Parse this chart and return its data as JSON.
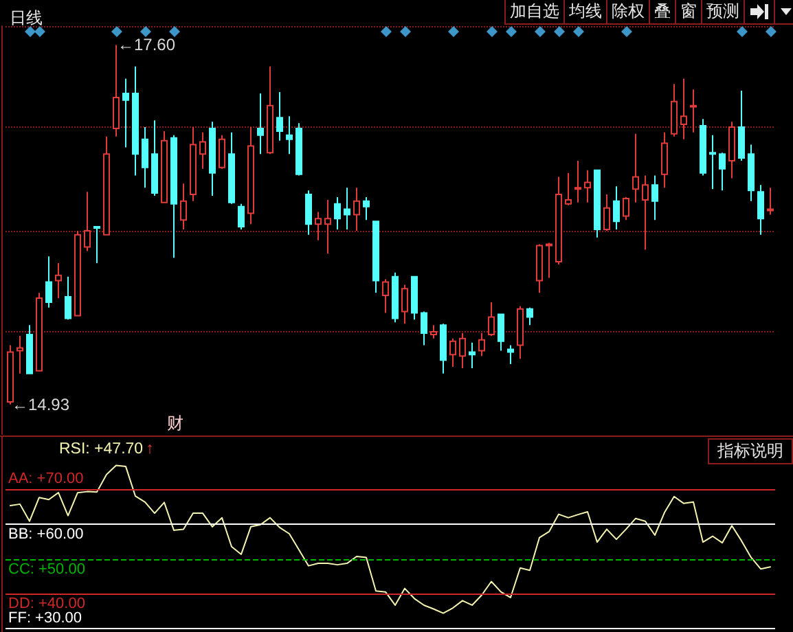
{
  "chart_data": [
    {
      "type": "candlestick",
      "title": "日线",
      "categories": [
        null,
        null,
        null,
        null,
        null,
        null,
        null,
        null,
        null,
        null,
        null,
        null,
        null,
        null,
        null,
        null,
        null,
        null,
        null,
        null,
        null,
        null,
        null,
        null,
        null,
        null,
        null,
        null,
        null,
        null,
        null,
        null,
        null,
        null,
        null,
        null,
        null,
        null,
        null,
        null,
        null,
        null,
        null,
        null,
        null,
        null,
        null,
        null,
        null,
        null,
        null,
        null,
        null,
        null,
        null,
        null,
        null,
        null,
        null,
        null,
        null,
        null,
        null,
        null,
        null,
        null,
        null,
        null,
        null,
        null,
        null,
        null,
        null,
        null,
        null,
        null,
        null,
        null,
        null,
        null
      ],
      "ohlc": [
        [
          14.95,
          15.37,
          14.93,
          15.32
        ],
        [
          15.33,
          15.44,
          15.16,
          15.35
        ],
        [
          15.45,
          15.52,
          15.16,
          15.16
        ],
        [
          15.18,
          15.76,
          15.18,
          15.72
        ],
        [
          15.84,
          16.03,
          15.65,
          15.69
        ],
        [
          15.85,
          15.98,
          15.72,
          15.89
        ],
        [
          15.73,
          15.88,
          15.56,
          15.57
        ],
        [
          15.59,
          16.22,
          15.59,
          16.19
        ],
        [
          16.1,
          16.51,
          16.07,
          16.22
        ],
        [
          16.25,
          16.25,
          15.98,
          16.24
        ],
        [
          16.19,
          16.92,
          16.19,
          16.79
        ],
        [
          16.98,
          17.6,
          16.92,
          17.21
        ],
        [
          17.24,
          17.35,
          16.84,
          17.19
        ],
        [
          17.24,
          17.44,
          16.63,
          16.79
        ],
        [
          16.9,
          16.99,
          16.54,
          16.69
        ],
        [
          16.79,
          17.04,
          16.48,
          16.5
        ],
        [
          16.43,
          16.96,
          16.43,
          16.89
        ],
        [
          16.91,
          16.93,
          16.02,
          16.42
        ],
        [
          16.3,
          16.57,
          16.23,
          16.44
        ],
        [
          16.49,
          16.99,
          16.44,
          16.86
        ],
        [
          16.79,
          16.95,
          16.68,
          16.88
        ],
        [
          16.98,
          17.03,
          16.48,
          16.65
        ],
        [
          16.69,
          16.93,
          16.68,
          16.9
        ],
        [
          16.79,
          16.95,
          16.42,
          16.43
        ],
        [
          16.4,
          16.42,
          16.23,
          16.25
        ],
        [
          16.35,
          16.99,
          16.27,
          16.85
        ],
        [
          16.98,
          17.24,
          16.79,
          16.93
        ],
        [
          16.8,
          17.44,
          16.79,
          17.15
        ],
        [
          17.06,
          17.25,
          16.89,
          16.96
        ],
        [
          16.93,
          17.07,
          16.79,
          16.9
        ],
        [
          16.98,
          17.02,
          16.63,
          16.64
        ],
        [
          16.49,
          16.52,
          16.19,
          16.27
        ],
        [
          16.27,
          16.36,
          16.15,
          16.31
        ],
        [
          16.27,
          16.45,
          16.05,
          16.31
        ],
        [
          16.42,
          16.47,
          16.23,
          16.31
        ],
        [
          16.38,
          16.54,
          16.23,
          16.34
        ],
        [
          16.34,
          16.54,
          16.22,
          16.44
        ],
        [
          16.44,
          16.47,
          16.3,
          16.4
        ],
        [
          16.29,
          16.29,
          15.76,
          15.85
        ],
        [
          15.74,
          15.86,
          15.61,
          15.84
        ],
        [
          15.88,
          15.91,
          15.54,
          15.57
        ],
        [
          15.62,
          15.82,
          15.53,
          15.79
        ],
        [
          15.88,
          15.88,
          15.56,
          15.61
        ],
        [
          15.61,
          15.62,
          15.37,
          15.46
        ],
        [
          15.45,
          15.52,
          15.42,
          15.47
        ],
        [
          15.52,
          15.53,
          15.16,
          15.26
        ],
        [
          15.3,
          15.42,
          15.21,
          15.4
        ],
        [
          15.29,
          15.46,
          15.2,
          15.42
        ],
        [
          15.32,
          15.39,
          15.2,
          15.3
        ],
        [
          15.33,
          15.46,
          15.29,
          15.41
        ],
        [
          15.45,
          15.69,
          15.44,
          15.58
        ],
        [
          15.6,
          15.6,
          15.33,
          15.4
        ],
        [
          15.34,
          15.37,
          15.23,
          15.32
        ],
        [
          15.37,
          15.66,
          15.27,
          15.64
        ],
        [
          15.64,
          15.65,
          15.52,
          15.58
        ],
        [
          15.85,
          16.12,
          15.76,
          16.11
        ],
        [
          16.11,
          16.13,
          15.87,
          16.12
        ],
        [
          15.99,
          16.62,
          15.97,
          16.49
        ],
        [
          16.42,
          16.65,
          16.41,
          16.45
        ],
        [
          16.53,
          16.74,
          16.43,
          16.54
        ],
        [
          16.54,
          16.67,
          16.43,
          16.58
        ],
        [
          16.67,
          16.67,
          16.17,
          16.23
        ],
        [
          16.23,
          16.49,
          16.22,
          16.39
        ],
        [
          16.44,
          16.55,
          16.23,
          16.29
        ],
        [
          16.33,
          16.47,
          16.3,
          16.46
        ],
        [
          16.53,
          16.94,
          16.43,
          16.62
        ],
        [
          16.45,
          16.63,
          16.08,
          16.56
        ],
        [
          16.56,
          16.63,
          16.3,
          16.44
        ],
        [
          16.64,
          16.95,
          16.54,
          16.87
        ],
        [
          16.94,
          17.31,
          16.92,
          17.18
        ],
        [
          17.01,
          17.35,
          16.9,
          17.07
        ],
        [
          17.14,
          17.27,
          16.95,
          17.15
        ],
        [
          17.0,
          17.05,
          16.63,
          16.65
        ],
        [
          16.8,
          16.93,
          16.53,
          16.79
        ],
        [
          16.79,
          16.8,
          16.52,
          16.68
        ],
        [
          16.74,
          17.03,
          16.61,
          16.99
        ],
        [
          16.99,
          17.26,
          16.74,
          16.76
        ],
        [
          16.79,
          16.86,
          16.44,
          16.52
        ],
        [
          16.51,
          16.56,
          16.19,
          16.31
        ],
        [
          16.37,
          16.54,
          16.34,
          16.38
        ]
      ],
      "colors": [
        "#e03c3c",
        "#e03c3c",
        "#54fcfc",
        "#e03c3c",
        "#54fcfc",
        "#e03c3c",
        "#54fcfc",
        "#e03c3c",
        "#e03c3c",
        "#54fcfc",
        "#e03c3c",
        "#e03c3c",
        "#54fcfc",
        "#54fcfc",
        "#54fcfc",
        "#54fcfc",
        "#e03c3c",
        "#54fcfc",
        "#e03c3c",
        "#e03c3c",
        "#e03c3c",
        "#54fcfc",
        "#e03c3c",
        "#54fcfc",
        "#54fcfc",
        "#e03c3c",
        "#54fcfc",
        "#e03c3c",
        "#54fcfc",
        "#54fcfc",
        "#54fcfc",
        "#54fcfc",
        "#e03c3c",
        "#e03c3c",
        "#54fcfc",
        "#54fcfc",
        "#e03c3c",
        "#54fcfc",
        "#54fcfc",
        "#e03c3c",
        "#54fcfc",
        "#e03c3c",
        "#54fcfc",
        "#54fcfc",
        "#e03c3c",
        "#54fcfc",
        "#e03c3c",
        "#e03c3c",
        "#54fcfc",
        "#e03c3c",
        "#e03c3c",
        "#54fcfc",
        "#54fcfc",
        "#e03c3c",
        "#54fcfc",
        "#e03c3c",
        "#e03c3c",
        "#e03c3c",
        "#e03c3c",
        "#e03c3c",
        "#e03c3c",
        "#54fcfc",
        "#e03c3c",
        "#54fcfc",
        "#e03c3c",
        "#e03c3c",
        "#e03c3c",
        "#54fcfc",
        "#e03c3c",
        "#e03c3c",
        "#e03c3c",
        "#e03c3c",
        "#54fcfc",
        "#54fcfc",
        "#54fcfc",
        "#e03c3c",
        "#54fcfc",
        "#54fcfc",
        "#54fcfc",
        "#e03c3c"
      ],
      "ylim": [
        14.71,
        17.74
      ],
      "yticks": [
        {
          "value": 15.47,
          "label": null
        },
        {
          "value": 16.22,
          "label": null
        },
        {
          "value": 16.99,
          "label": null
        },
        {
          "value": 17.74,
          "label": null
        }
      ],
      "grid": "y",
      "tick_labels": false,
      "annotations": [
        "←17.60",
        "←14.93",
        "财",
        "加自选",
        "均线",
        "除权",
        "叠",
        "窗",
        "预测"
      ]
    },
    {
      "type": "line",
      "categories": [
        null,
        null,
        null,
        null,
        null,
        null,
        null,
        null,
        null,
        null,
        null,
        null,
        null,
        null,
        null,
        null,
        null,
        null,
        null,
        null,
        null,
        null,
        null,
        null,
        null,
        null,
        null,
        null,
        null,
        null,
        null,
        null,
        null,
        null,
        null,
        null,
        null,
        null,
        null,
        null,
        null,
        null,
        null,
        null,
        null,
        null,
        null,
        null,
        null,
        null,
        null,
        null,
        null,
        null,
        null,
        null,
        null,
        null,
        null,
        null,
        null,
        null,
        null,
        null,
        null,
        null,
        null,
        null,
        null,
        null,
        null,
        null,
        null,
        null,
        null,
        null,
        null,
        null,
        null,
        null
      ],
      "series": [
        {
          "name": "RSI: +47.70",
          "color": "#f4f4b0",
          "values": [
            65.3,
            65.7,
            60.8,
            67.6,
            67.0,
            69.0,
            62.4,
            69.0,
            69.3,
            69.2,
            74.2,
            76.8,
            76.5,
            68.0,
            66.3,
            63.1,
            66.2,
            58.2,
            58.5,
            63.1,
            63.1,
            59.2,
            61.8,
            53.5,
            51.3,
            59.2,
            59.8,
            61.8,
            59.0,
            57.2,
            52.6,
            48.0,
            48.7,
            48.7,
            48.3,
            48.7,
            50.7,
            50.4,
            40.8,
            40.5,
            36.7,
            41.5,
            38.6,
            36.7,
            35.6,
            34.4,
            35.9,
            38.0,
            36.7,
            39.6,
            43.5,
            40.5,
            38.9,
            47.4,
            46.7,
            56.1,
            57.8,
            62.8,
            61.8,
            62.7,
            63.5,
            54.8,
            58.5,
            55.6,
            58.5,
            61.6,
            60.8,
            56.8,
            63.3,
            67.9,
            65.9,
            66.3,
            54.8,
            56.5,
            54.6,
            59.5,
            55.2,
            50.4,
            47.1,
            47.7
          ]
        }
      ],
      "ylim": [
        29,
        85
      ],
      "tick_labels": false,
      "marker": "none",
      "line_style": "solid",
      "ref_lines": [
        {
          "axis": "y",
          "value": 70,
          "label": "AA: +70.00",
          "color": "#d02828",
          "line_style": "solid"
        },
        {
          "axis": "y",
          "value": 60,
          "label": "BB: +60.00",
          "color": "#ffffff",
          "line_style": "solid"
        },
        {
          "axis": "y",
          "value": 50,
          "label": "CC: +50.00",
          "color": "#00b400",
          "line_style": "dashed"
        },
        {
          "axis": "y",
          "value": 40,
          "label": "DD: +40.00",
          "color": "#d02828",
          "line_style": "solid"
        },
        {
          "axis": "y",
          "value": 30,
          "label": "FF: +30.00",
          "color": "#ffffff",
          "line_style": "solid"
        }
      ],
      "annotations": [
        "↑",
        "指标说明"
      ]
    }
  ]
}
